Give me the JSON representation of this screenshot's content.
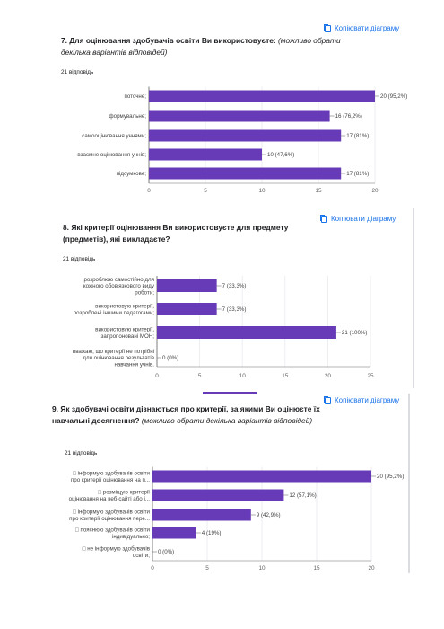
{
  "copy_label": "Копіювати діаграму",
  "colors": {
    "bar": "#673ab7",
    "link": "#1a73e8",
    "grid": "#e8eaed",
    "axis": "#616161"
  },
  "chart_data": [
    {
      "type": "bar",
      "orientation": "horizontal",
      "title_number": "7.",
      "title": "Для оцінювання здобувачів освіти Ви використовуєте:",
      "title_note": "(можливо обрати декілька варіантів відповідей)",
      "responses": "21 відповідь",
      "categories": [
        "поточне;",
        "формувальне;",
        "самооцінювання учнями;",
        "взаємне оцінювання учнів;",
        "підсумкове;"
      ],
      "values": [
        20,
        16,
        17,
        10,
        17
      ],
      "value_labels": [
        "20 (95,2%)",
        "16 (76,2%)",
        "17 (81%)",
        "10 (47,6%)",
        "17 (81%)"
      ],
      "xlim": [
        0,
        20
      ],
      "ticks": [
        0,
        5,
        10,
        15,
        20
      ],
      "grid": true
    },
    {
      "type": "bar",
      "orientation": "horizontal",
      "title_number": "8.",
      "title": "Які критерії оцінювання Ви використовуєте для предмету (предметів), які викладаєте?",
      "title_note": "",
      "responses": "21 відповідь",
      "categories": [
        [
          "розроблюю самостійно для",
          "кожного обов'язкового виду",
          "роботи;"
        ],
        [
          "використовую критерії,",
          "розроблені іншими педагогами;"
        ],
        [
          "використовую критерії,",
          "запропоновані МОН;"
        ],
        [
          "вважаю, що критерії не потрібні",
          "для оцінювання результатів",
          "навчання учнів."
        ]
      ],
      "values": [
        7,
        7,
        21,
        0
      ],
      "value_labels": [
        "7 (33,3%)",
        "7 (33,3%)",
        "21 (100%)",
        "0 (0%)"
      ],
      "xlim": [
        0,
        25
      ],
      "ticks": [
        0,
        5,
        10,
        15,
        20,
        25
      ],
      "grid": true
    },
    {
      "type": "bar",
      "orientation": "horizontal",
      "title_number": "9.",
      "title": "Як здобувачі освіти дізнаються про критерії, за якими Ви оцінюєте їх навчальні досягнення?",
      "title_note": "(можливо обрати декілька варіантів відповідей)",
      "responses": "21 відповідь",
      "categories": [
        [
          "□ інформую здобувачів освіти",
          "про критерії оцінювання на п..."
        ],
        [
          "□ розміщую критерії",
          "оцінювання на веб-сайті або і..."
        ],
        [
          "□ інформую здобувачів освіти",
          "про критерії оцінювання пере..."
        ],
        [
          "□ пояснюю здобувачів освіти",
          "індивідуально;"
        ],
        [
          "□ не інформую здобувачів",
          "освіти;"
        ]
      ],
      "values": [
        20,
        12,
        9,
        4,
        0
      ],
      "value_labels": [
        "20 (95,2%)",
        "12 (57,1%)",
        "9 (42,9%)",
        "4 (19%)",
        "0 (0%)"
      ],
      "xlim": [
        0,
        20
      ],
      "ticks": [
        0,
        5,
        10,
        15,
        20
      ],
      "grid": true
    }
  ]
}
